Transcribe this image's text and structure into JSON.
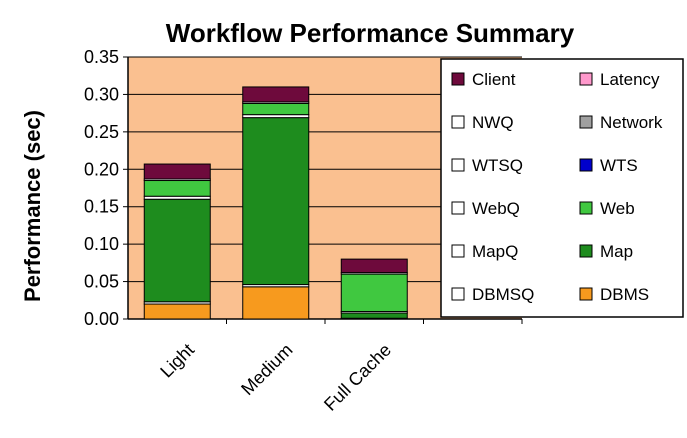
{
  "chart_data": {
    "type": "bar",
    "stacked": true,
    "title": "Workflow Performance Summary",
    "xlabel": "",
    "ylabel": "Performance (sec)",
    "ylim": [
      0,
      0.35
    ],
    "yticks": [
      "0.00",
      "0.05",
      "0.10",
      "0.15",
      "0.20",
      "0.25",
      "0.30",
      "0.35"
    ],
    "ytick_values": [
      0,
      0.05,
      0.1,
      0.15,
      0.2,
      0.25,
      0.3,
      0.35
    ],
    "categories": [
      "Light",
      "Medium",
      "Full Cache"
    ],
    "grid": "horizontal",
    "legend_position": "right",
    "plot_background": "#FAC090",
    "series": [
      {
        "name": "DBMS",
        "color": "#F79A1E",
        "values": [
          0.02,
          0.043,
          0.0
        ]
      },
      {
        "name": "DBMSQ",
        "color": "#FFFFFF",
        "values": [
          0.003,
          0.003,
          0.001
        ]
      },
      {
        "name": "Map",
        "color": "#1E8C1E",
        "values": [
          0.137,
          0.223,
          0.007
        ]
      },
      {
        "name": "MapQ",
        "color": "#FFFFFF",
        "values": [
          0.004,
          0.004,
          0.002
        ]
      },
      {
        "name": "Web",
        "color": "#40C840",
        "values": [
          0.021,
          0.015,
          0.05
        ]
      },
      {
        "name": "WebQ",
        "color": "#FFFFFF",
        "values": [
          0.002,
          0.002,
          0.002
        ]
      },
      {
        "name": "WTS",
        "color": "#0000CC",
        "values": [
          0.0,
          0.0,
          0.0
        ]
      },
      {
        "name": "WTSQ",
        "color": "#FFFFFF",
        "values": [
          0.0,
          0.0,
          0.0
        ]
      },
      {
        "name": "Network",
        "color": "#A0A0A0",
        "values": [
          0.0,
          0.0,
          0.0
        ]
      },
      {
        "name": "NWQ",
        "color": "#FFFFFF",
        "values": [
          0.0,
          0.0,
          0.0
        ]
      },
      {
        "name": "Latency",
        "color": "#FF99CC",
        "values": [
          0.0,
          0.0,
          0.0
        ]
      },
      {
        "name": "Client",
        "color": "#6E0A3C",
        "values": [
          0.02,
          0.02,
          0.018
        ]
      }
    ],
    "legend_order": [
      "Client",
      "Latency",
      "NWQ",
      "Network",
      "WTSQ",
      "WTS",
      "WebQ",
      "Web",
      "MapQ",
      "Map",
      "DBMSQ",
      "DBMS"
    ]
  }
}
